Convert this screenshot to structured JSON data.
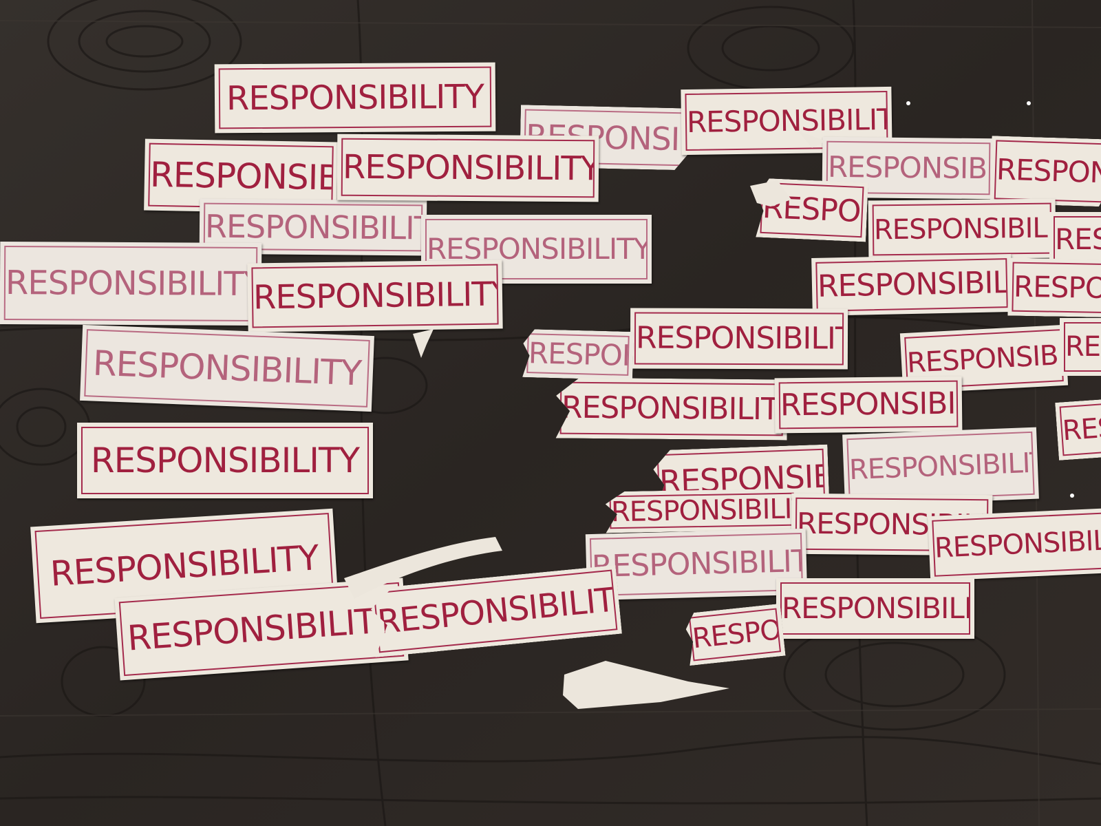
{
  "photo": {
    "board_color": "#2b2623",
    "sticker_color": "#eee8de",
    "ink_color": "#a0203f"
  },
  "stickers": [
    {
      "text": "RESPONSIBILITY"
    }
  ]
}
